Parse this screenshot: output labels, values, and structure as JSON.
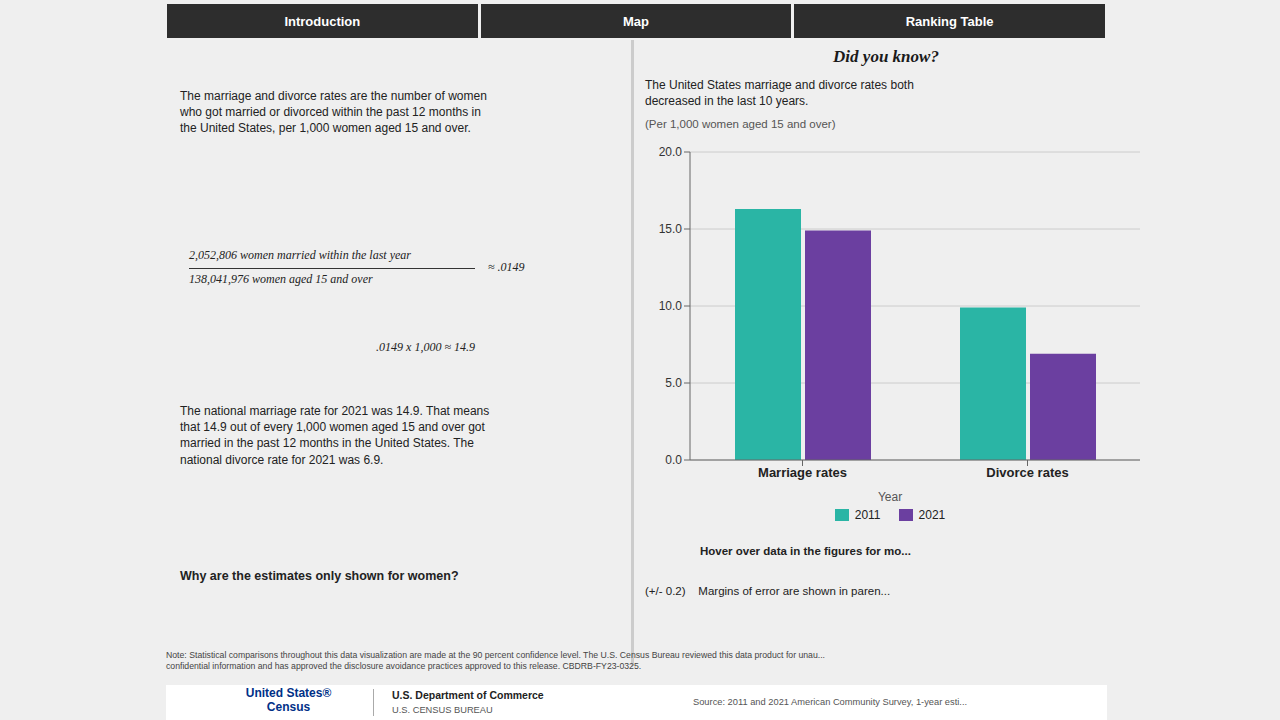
{
  "chart_data": {
    "type": "bar",
    "title": "Did you know?",
    "subtitle": "The United States marriage and divorce rates both\ndecreased in the last 10 years.",
    "categories": [
      "Marriage rates",
      "Divorce rates"
    ],
    "series": [
      {
        "name": "2011",
        "color": "#2ab5a5",
        "values": [
          16.3,
          9.9
        ]
      },
      {
        "name": "2021",
        "color": "#6b3fa0",
        "values": [
          14.9,
          6.9
        ]
      }
    ],
    "ylim": [
      0,
      20
    ],
    "yticks": [
      {
        "value": 0,
        "label": "0.0"
      },
      {
        "value": 5,
        "label": "5.0"
      },
      {
        "value": 10,
        "label": "10.0"
      },
      {
        "value": 15,
        "label": "15.0"
      },
      {
        "value": 20,
        "label": "20.0"
      }
    ],
    "grid": true,
    "legend": "bottom",
    "legend_title": "Year",
    "annotations": [
      "Introduction",
      "Map",
      "Ranking Table",
      "The marriage and divorce rates are the number of women\nwho got married or divorced within the past 12 months in\nthe United States, per 1,000 women aged 15 and over.",
      "2,052,806 women married within the last year",
      "138,041,976 women aged 15 and over",
      "≈ .0149",
      ".0149 x 1,000 ≈ 14.9",
      "The national marriage rate for 2021 was 14.9. That means\nthat 14.9 out of every 1,000 women aged 15 and over got\nmarried in the past 12 months in the United States. The\nnational divorce rate for 2021 was 6.9.",
      "Why are the estimates only shown for women?",
      "(Per 1,000 women aged 15 and over)",
      "Hover over data in the figures for mo...",
      "(+/- 0.2)    Margins of error are shown in paren...",
      "Note: Statistical comparisons throughout this data visualization are made at the 90 percent confidence level. The U.S. Census Bureau reviewed this data product for unau...\nconfidential information and has approved the disclosure avoidance practices approved to this release. CBDRB-FY23-0325.",
      "United States®\nCensus",
      "U.S. Department of Commerce",
      "U.S. CENSUS BUREAU",
      "Source: 2011 and 2021 American Community Survey, 1-year esti..."
    ]
  }
}
